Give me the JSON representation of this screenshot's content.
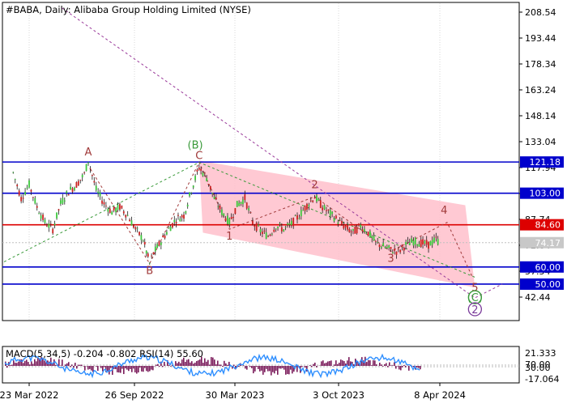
{
  "chart_data": {
    "type": "candlestick",
    "symbol_line": "#BABA, Daily:  Alibaba Group Holding Limited (NYSE)",
    "y_ticks": [
      208.54,
      193.44,
      178.34,
      163.24,
      148.14,
      133.04,
      117.94,
      102.84,
      87.74,
      72.64,
      57.54,
      42.44
    ],
    "ylim": [
      36.4,
      214.6
    ],
    "x_ticks": [
      "23 Mar 2022",
      "26 Sep 2022",
      "30 Mar 2023",
      "3 Oct 2023",
      "8 Apr 2024"
    ],
    "levels": [
      {
        "value": 121.18,
        "label": "121.18",
        "kind": "resistance"
      },
      {
        "value": 103.0,
        "label": "103.00",
        "kind": "resistance"
      },
      {
        "value": 84.6,
        "label": "84.60",
        "kind": "current"
      },
      {
        "value": 74.17,
        "label": "74.17",
        "kind": "last"
      },
      {
        "value": 60.0,
        "label": "60.00",
        "kind": "support"
      },
      {
        "value": 50.0,
        "label": "50.00",
        "kind": "support"
      }
    ],
    "price_series": [
      {
        "date": "2022-03-09",
        "close": 115
      },
      {
        "date": "2022-03-16",
        "close": 100
      },
      {
        "date": "2022-03-23",
        "close": 108
      },
      {
        "date": "2022-04-06",
        "close": 95
      },
      {
        "date": "2022-04-20",
        "close": 86
      },
      {
        "date": "2022-05-04",
        "close": 82
      },
      {
        "date": "2022-05-18",
        "close": 97
      },
      {
        "date": "2022-06-01",
        "close": 104
      },
      {
        "date": "2022-06-15",
        "close": 108
      },
      {
        "date": "2022-06-29",
        "close": 114
      },
      {
        "date": "2022-07-06",
        "close": 122
      },
      {
        "date": "2022-07-20",
        "close": 105
      },
      {
        "date": "2022-08-03",
        "close": 97
      },
      {
        "date": "2022-08-17",
        "close": 92
      },
      {
        "date": "2022-08-31",
        "close": 95
      },
      {
        "date": "2022-09-14",
        "close": 90
      },
      {
        "date": "2022-09-28",
        "close": 82
      },
      {
        "date": "2022-10-12",
        "close": 76
      },
      {
        "date": "2022-10-24",
        "close": 62
      },
      {
        "date": "2022-10-31",
        "close": 68
      },
      {
        "date": "2022-11-14",
        "close": 75
      },
      {
        "date": "2022-11-28",
        "close": 82
      },
      {
        "date": "2022-12-12",
        "close": 88
      },
      {
        "date": "2022-12-26",
        "close": 90
      },
      {
        "date": "2023-01-09",
        "close": 105
      },
      {
        "date": "2023-01-23",
        "close": 118
      },
      {
        "date": "2023-02-06",
        "close": 112
      },
      {
        "date": "2023-02-20",
        "close": 100
      },
      {
        "date": "2023-03-06",
        "close": 92
      },
      {
        "date": "2023-03-20",
        "close": 86
      },
      {
        "date": "2023-04-03",
        "close": 96
      },
      {
        "date": "2023-04-17",
        "close": 100
      },
      {
        "date": "2023-05-01",
        "close": 86
      },
      {
        "date": "2023-05-15",
        "close": 81
      },
      {
        "date": "2023-05-29",
        "close": 78
      },
      {
        "date": "2023-06-12",
        "close": 84
      },
      {
        "date": "2023-06-26",
        "close": 82
      },
      {
        "date": "2023-07-10",
        "close": 85
      },
      {
        "date": "2023-07-24",
        "close": 90
      },
      {
        "date": "2023-08-07",
        "close": 96
      },
      {
        "date": "2023-08-21",
        "close": 101
      },
      {
        "date": "2023-09-04",
        "close": 95
      },
      {
        "date": "2023-09-18",
        "close": 91
      },
      {
        "date": "2023-10-02",
        "close": 87
      },
      {
        "date": "2023-10-16",
        "close": 83
      },
      {
        "date": "2023-10-30",
        "close": 80
      },
      {
        "date": "2023-11-13",
        "close": 84
      },
      {
        "date": "2023-11-27",
        "close": 80
      },
      {
        "date": "2023-12-11",
        "close": 74
      },
      {
        "date": "2023-12-25",
        "close": 72
      },
      {
        "date": "2024-01-08",
        "close": 70
      },
      {
        "date": "2024-01-22",
        "close": 69
      },
      {
        "date": "2024-02-05",
        "close": 73
      },
      {
        "date": "2024-02-19",
        "close": 75
      },
      {
        "date": "2024-03-04",
        "close": 74
      },
      {
        "date": "2024-03-18",
        "close": 73
      },
      {
        "date": "2024-04-01",
        "close": 76
      },
      {
        "date": "2024-04-08",
        "close": 74.17
      }
    ],
    "wave_labels": [
      {
        "text": "A",
        "date": "2022-07-06",
        "price": 125,
        "color": "#a03a3a"
      },
      {
        "text": "B",
        "date": "2022-10-24",
        "price": 56,
        "color": "#a03a3a"
      },
      {
        "text": "C",
        "date": "2023-01-23",
        "price": 123,
        "color": "#a03a3a"
      },
      {
        "text": "(B)",
        "date": "2023-01-16",
        "price": 129,
        "color": "#3a9a3a"
      },
      {
        "text": "1",
        "date": "2023-03-20",
        "price": 76,
        "color": "#a03a3a"
      },
      {
        "text": "2",
        "date": "2023-08-21",
        "price": 106,
        "color": "#a03a3a"
      },
      {
        "text": "3",
        "date": "2024-01-08",
        "price": 63,
        "color": "#a03a3a"
      },
      {
        "text": "4",
        "date": "2024-04-15",
        "price": 91,
        "color": "#a03a3a"
      },
      {
        "text": "5",
        "date": "2024-06-05",
        "price": 46,
        "color": "#a03a3a"
      },
      {
        "text": "(C)",
        "date": "2024-06-05",
        "price": 40,
        "color": "#3a9a3a"
      },
      {
        "text": "2",
        "date": "2024-06-05",
        "price": 33,
        "color": "#7a3a9a"
      }
    ],
    "indicator_label": "MACD(5,34,5) -0.204 -0.802 RSI(14) 55.60",
    "indicator_ticks": [
      "21.333",
      "70.00",
      "30.00",
      "-17.064"
    ],
    "indicator": {
      "rsi_overbought": 70,
      "rsi_oversold": 30,
      "rsi_last": 55.6,
      "macd_main": -0.204,
      "macd_signal": -0.802
    }
  }
}
